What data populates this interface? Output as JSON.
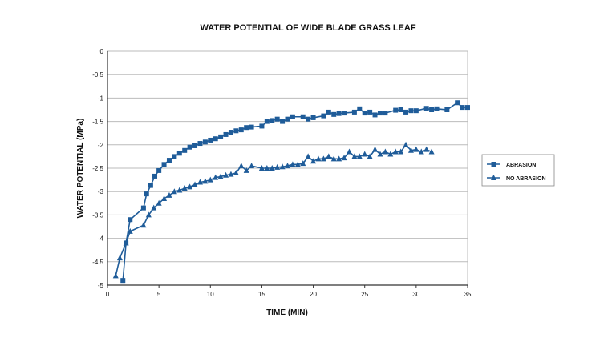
{
  "chart_data": {
    "type": "line",
    "title": "WATER POTENTIAL OF WIDE BLADE GRASS LEAF",
    "xlabel": "TIME (MIN)",
    "ylabel": "WATER POTENTIAL (MPa)",
    "xlim": [
      0,
      35
    ],
    "ylim": [
      -5,
      0
    ],
    "xticks": [
      0,
      5,
      10,
      15,
      20,
      25,
      30,
      35
    ],
    "yticks": [
      0,
      -0.5,
      -1,
      -1.5,
      -2,
      -2.5,
      -3,
      -3.5,
      -4,
      -4.5,
      -5
    ],
    "grid": "horizontal",
    "legend_position": "right",
    "color": "#1f5c99",
    "series": [
      {
        "name": "ABRASION",
        "marker": "square",
        "points": [
          [
            1.5,
            -4.9
          ],
          [
            1.8,
            -4.1
          ],
          [
            2.2,
            -3.6
          ],
          [
            3.5,
            -3.35
          ],
          [
            3.8,
            -3.05
          ],
          [
            4.2,
            -2.87
          ],
          [
            4.6,
            -2.67
          ],
          [
            5,
            -2.55
          ],
          [
            5.5,
            -2.42
          ],
          [
            6,
            -2.33
          ],
          [
            6.5,
            -2.25
          ],
          [
            7,
            -2.18
          ],
          [
            7.5,
            -2.12
          ],
          [
            8,
            -2.05
          ],
          [
            8.5,
            -2.02
          ],
          [
            9,
            -1.97
          ],
          [
            9.5,
            -1.94
          ],
          [
            10,
            -1.9
          ],
          [
            10.5,
            -1.87
          ],
          [
            11,
            -1.83
          ],
          [
            11.5,
            -1.78
          ],
          [
            12,
            -1.73
          ],
          [
            12.5,
            -1.7
          ],
          [
            13,
            -1.68
          ],
          [
            13.5,
            -1.63
          ],
          [
            14,
            -1.62
          ],
          [
            15,
            -1.6
          ],
          [
            15.5,
            -1.5
          ],
          [
            16,
            -1.48
          ],
          [
            16.5,
            -1.45
          ],
          [
            17,
            -1.5
          ],
          [
            17.5,
            -1.45
          ],
          [
            18,
            -1.4
          ],
          [
            19,
            -1.4
          ],
          [
            19.5,
            -1.45
          ],
          [
            20,
            -1.42
          ],
          [
            21,
            -1.38
          ],
          [
            21.5,
            -1.3
          ],
          [
            22,
            -1.35
          ],
          [
            22.5,
            -1.33
          ],
          [
            23,
            -1.32
          ],
          [
            24,
            -1.3
          ],
          [
            24.5,
            -1.23
          ],
          [
            25,
            -1.32
          ],
          [
            25.5,
            -1.3
          ],
          [
            26,
            -1.36
          ],
          [
            26.5,
            -1.32
          ],
          [
            27,
            -1.32
          ],
          [
            28,
            -1.26
          ],
          [
            28.5,
            -1.25
          ],
          [
            29,
            -1.3
          ],
          [
            29.5,
            -1.27
          ],
          [
            30,
            -1.27
          ],
          [
            31,
            -1.22
          ],
          [
            31.5,
            -1.25
          ],
          [
            32,
            -1.23
          ],
          [
            33,
            -1.25
          ],
          [
            34,
            -1.1
          ],
          [
            34.5,
            -1.2
          ],
          [
            35,
            -1.2
          ]
        ]
      },
      {
        "name": "NO ABRASION",
        "marker": "triangle",
        "points": [
          [
            0.8,
            -4.8
          ],
          [
            1.2,
            -4.42
          ],
          [
            1.8,
            -4.1
          ],
          [
            2.2,
            -3.85
          ],
          [
            3.5,
            -3.72
          ],
          [
            4,
            -3.5
          ],
          [
            4.5,
            -3.35
          ],
          [
            5,
            -3.25
          ],
          [
            5.5,
            -3.15
          ],
          [
            6,
            -3.08
          ],
          [
            6.5,
            -3
          ],
          [
            7,
            -2.97
          ],
          [
            7.5,
            -2.93
          ],
          [
            8,
            -2.9
          ],
          [
            8.5,
            -2.85
          ],
          [
            9,
            -2.8
          ],
          [
            9.5,
            -2.78
          ],
          [
            10,
            -2.75
          ],
          [
            10.5,
            -2.7
          ],
          [
            11,
            -2.68
          ],
          [
            11.5,
            -2.65
          ],
          [
            12,
            -2.63
          ],
          [
            12.5,
            -2.6
          ],
          [
            13,
            -2.45
          ],
          [
            13.5,
            -2.55
          ],
          [
            14,
            -2.45
          ],
          [
            15,
            -2.5
          ],
          [
            15.5,
            -2.5
          ],
          [
            16,
            -2.5
          ],
          [
            16.5,
            -2.48
          ],
          [
            17,
            -2.47
          ],
          [
            17.5,
            -2.45
          ],
          [
            18,
            -2.42
          ],
          [
            18.5,
            -2.42
          ],
          [
            19,
            -2.4
          ],
          [
            19.5,
            -2.25
          ],
          [
            20,
            -2.35
          ],
          [
            20.5,
            -2.3
          ],
          [
            21,
            -2.3
          ],
          [
            21.5,
            -2.25
          ],
          [
            22,
            -2.3
          ],
          [
            22.5,
            -2.3
          ],
          [
            23,
            -2.28
          ],
          [
            23.5,
            -2.15
          ],
          [
            24,
            -2.25
          ],
          [
            24.5,
            -2.25
          ],
          [
            25,
            -2.2
          ],
          [
            25.5,
            -2.25
          ],
          [
            26,
            -2.1
          ],
          [
            26.5,
            -2.2
          ],
          [
            27,
            -2.15
          ],
          [
            27.5,
            -2.2
          ],
          [
            28,
            -2.15
          ],
          [
            28.5,
            -2.15
          ],
          [
            29,
            -2
          ],
          [
            29.5,
            -2.12
          ],
          [
            30,
            -2.1
          ],
          [
            30.5,
            -2.15
          ],
          [
            31,
            -2.1
          ],
          [
            31.5,
            -2.15
          ]
        ]
      }
    ]
  }
}
